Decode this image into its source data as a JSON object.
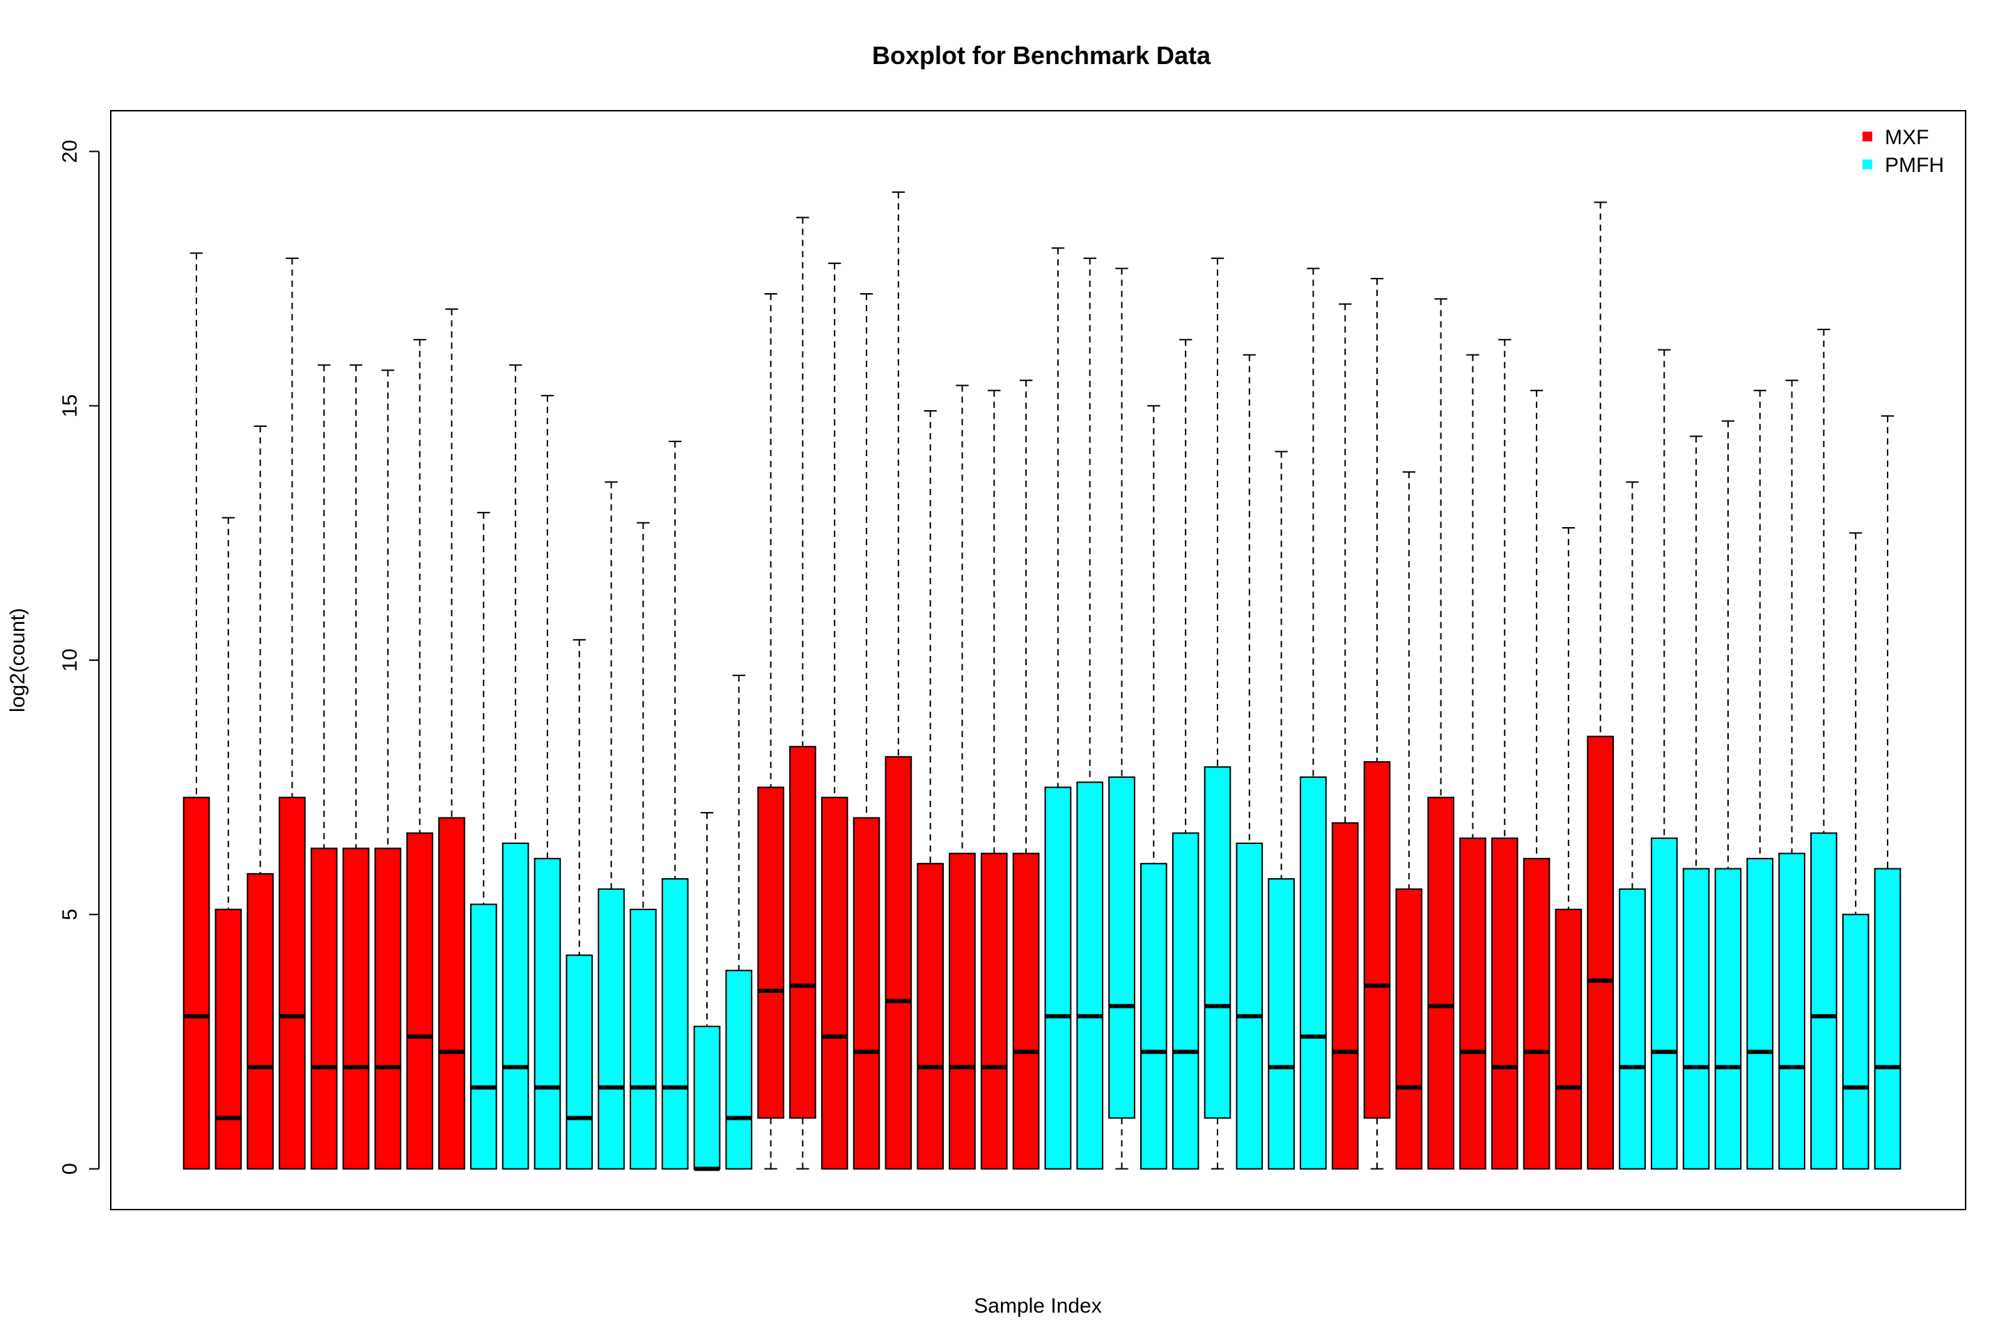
{
  "chart_data": {
    "type": "boxplot",
    "title": "Boxplot for Benchmark Data",
    "xlabel": "Sample Index",
    "ylabel": "log2(count)",
    "ylim": [
      -0.8,
      20.8
    ],
    "yticks": [
      0,
      5,
      10,
      15,
      20
    ],
    "legend": {
      "placement": "top-right",
      "entries": [
        {
          "name": "MXF",
          "color": "#ff0000"
        },
        {
          "name": "PMFH",
          "color": "#00ffff"
        }
      ]
    },
    "boxes": [
      {
        "group": "MXF",
        "min": 0,
        "q1": 0,
        "median": 3.0,
        "q3": 7.3,
        "max": 18.0
      },
      {
        "group": "MXF",
        "min": 0,
        "q1": 0,
        "median": 1.0,
        "q3": 5.1,
        "max": 12.8
      },
      {
        "group": "MXF",
        "min": 0,
        "q1": 0,
        "median": 2.0,
        "q3": 5.8,
        "max": 14.6
      },
      {
        "group": "MXF",
        "min": 0,
        "q1": 0,
        "median": 3.0,
        "q3": 7.3,
        "max": 17.9
      },
      {
        "group": "MXF",
        "min": 0,
        "q1": 0,
        "median": 2.0,
        "q3": 6.3,
        "max": 15.8
      },
      {
        "group": "MXF",
        "min": 0,
        "q1": 0,
        "median": 2.0,
        "q3": 6.3,
        "max": 15.8
      },
      {
        "group": "MXF",
        "min": 0,
        "q1": 0,
        "median": 2.0,
        "q3": 6.3,
        "max": 15.7
      },
      {
        "group": "MXF",
        "min": 0,
        "q1": 0,
        "median": 2.6,
        "q3": 6.6,
        "max": 16.3
      },
      {
        "group": "MXF",
        "min": 0,
        "q1": 0,
        "median": 2.3,
        "q3": 6.9,
        "max": 16.9
      },
      {
        "group": "PMFH",
        "min": 0,
        "q1": 0,
        "median": 1.6,
        "q3": 5.2,
        "max": 12.9
      },
      {
        "group": "PMFH",
        "min": 0,
        "q1": 0,
        "median": 2.0,
        "q3": 6.4,
        "max": 15.8
      },
      {
        "group": "PMFH",
        "min": 0,
        "q1": 0,
        "median": 1.6,
        "q3": 6.1,
        "max": 15.2
      },
      {
        "group": "PMFH",
        "min": 0,
        "q1": 0,
        "median": 1.0,
        "q3": 4.2,
        "max": 10.4
      },
      {
        "group": "PMFH",
        "min": 0,
        "q1": 0,
        "median": 1.6,
        "q3": 5.5,
        "max": 13.5
      },
      {
        "group": "PMFH",
        "min": 0,
        "q1": 0,
        "median": 1.6,
        "q3": 5.1,
        "max": 12.7
      },
      {
        "group": "PMFH",
        "min": 0,
        "q1": 0,
        "median": 1.6,
        "q3": 5.7,
        "max": 14.3
      },
      {
        "group": "PMFH",
        "min": 0,
        "q1": 0,
        "median": 0.0,
        "q3": 2.8,
        "max": 7.0
      },
      {
        "group": "PMFH",
        "min": 0,
        "q1": 0,
        "median": 1.0,
        "q3": 3.9,
        "max": 9.7
      },
      {
        "group": "MXF",
        "min": 0,
        "q1": 1.0,
        "median": 3.5,
        "q3": 7.5,
        "max": 17.2
      },
      {
        "group": "MXF",
        "min": 0,
        "q1": 1.0,
        "median": 3.6,
        "q3": 8.3,
        "max": 18.7
      },
      {
        "group": "MXF",
        "min": 0,
        "q1": 0,
        "median": 2.6,
        "q3": 7.3,
        "max": 17.8
      },
      {
        "group": "MXF",
        "min": 0,
        "q1": 0,
        "median": 2.3,
        "q3": 6.9,
        "max": 17.2
      },
      {
        "group": "MXF",
        "min": 0,
        "q1": 0,
        "median": 3.3,
        "q3": 8.1,
        "max": 19.2
      },
      {
        "group": "MXF",
        "min": 0,
        "q1": 0,
        "median": 2.0,
        "q3": 6.0,
        "max": 14.9
      },
      {
        "group": "MXF",
        "min": 0,
        "q1": 0,
        "median": 2.0,
        "q3": 6.2,
        "max": 15.4
      },
      {
        "group": "MXF",
        "min": 0,
        "q1": 0,
        "median": 2.0,
        "q3": 6.2,
        "max": 15.3
      },
      {
        "group": "MXF",
        "min": 0,
        "q1": 0,
        "median": 2.3,
        "q3": 6.2,
        "max": 15.5
      },
      {
        "group": "PMFH",
        "min": 0,
        "q1": 0,
        "median": 3.0,
        "q3": 7.5,
        "max": 18.1
      },
      {
        "group": "PMFH",
        "min": 0,
        "q1": 0,
        "median": 3.0,
        "q3": 7.6,
        "max": 17.9
      },
      {
        "group": "PMFH",
        "min": 0,
        "q1": 1.0,
        "median": 3.2,
        "q3": 7.7,
        "max": 17.7
      },
      {
        "group": "PMFH",
        "min": 0,
        "q1": 0,
        "median": 2.3,
        "q3": 6.0,
        "max": 15.0
      },
      {
        "group": "PMFH",
        "min": 0,
        "q1": 0,
        "median": 2.3,
        "q3": 6.6,
        "max": 16.3
      },
      {
        "group": "PMFH",
        "min": 0,
        "q1": 1.0,
        "median": 3.2,
        "q3": 7.9,
        "max": 17.9
      },
      {
        "group": "PMFH",
        "min": 0,
        "q1": 0,
        "median": 3.0,
        "q3": 6.4,
        "max": 16.0
      },
      {
        "group": "PMFH",
        "min": 0,
        "q1": 0,
        "median": 2.0,
        "q3": 5.7,
        "max": 14.1
      },
      {
        "group": "PMFH",
        "min": 0,
        "q1": 0,
        "median": 2.6,
        "q3": 7.7,
        "max": 17.7
      },
      {
        "group": "MXF",
        "min": 0,
        "q1": 0,
        "median": 2.3,
        "q3": 6.8,
        "max": 17.0
      },
      {
        "group": "MXF",
        "min": 0,
        "q1": 1.0,
        "median": 3.6,
        "q3": 8.0,
        "max": 17.5
      },
      {
        "group": "MXF",
        "min": 0,
        "q1": 0,
        "median": 1.6,
        "q3": 5.5,
        "max": 13.7
      },
      {
        "group": "MXF",
        "min": 0,
        "q1": 0,
        "median": 3.2,
        "q3": 7.3,
        "max": 17.1
      },
      {
        "group": "MXF",
        "min": 0,
        "q1": 0,
        "median": 2.3,
        "q3": 6.5,
        "max": 16.0
      },
      {
        "group": "MXF",
        "min": 0,
        "q1": 0,
        "median": 2.0,
        "q3": 6.5,
        "max": 16.3
      },
      {
        "group": "MXF",
        "min": 0,
        "q1": 0,
        "median": 2.3,
        "q3": 6.1,
        "max": 15.3
      },
      {
        "group": "MXF",
        "min": 0,
        "q1": 0,
        "median": 1.6,
        "q3": 5.1,
        "max": 12.6
      },
      {
        "group": "MXF",
        "min": 0,
        "q1": 0,
        "median": 3.7,
        "q3": 8.5,
        "max": 19.0
      },
      {
        "group": "PMFH",
        "min": 0,
        "q1": 0,
        "median": 2.0,
        "q3": 5.5,
        "max": 13.5
      },
      {
        "group": "PMFH",
        "min": 0,
        "q1": 0,
        "median": 2.3,
        "q3": 6.5,
        "max": 16.1
      },
      {
        "group": "PMFH",
        "min": 0,
        "q1": 0,
        "median": 2.0,
        "q3": 5.9,
        "max": 14.4
      },
      {
        "group": "PMFH",
        "min": 0,
        "q1": 0,
        "median": 2.0,
        "q3": 5.9,
        "max": 14.7
      },
      {
        "group": "PMFH",
        "min": 0,
        "q1": 0,
        "median": 2.3,
        "q3": 6.1,
        "max": 15.3
      },
      {
        "group": "PMFH",
        "min": 0,
        "q1": 0,
        "median": 2.0,
        "q3": 6.2,
        "max": 15.5
      },
      {
        "group": "PMFH",
        "min": 0,
        "q1": 0,
        "median": 3.0,
        "q3": 6.6,
        "max": 16.5
      },
      {
        "group": "PMFH",
        "min": 0,
        "q1": 0,
        "median": 1.6,
        "q3": 5.0,
        "max": 12.5
      },
      {
        "group": "PMFH",
        "min": 0,
        "q1": 0,
        "median": 2.0,
        "q3": 5.9,
        "max": 14.8
      }
    ]
  }
}
